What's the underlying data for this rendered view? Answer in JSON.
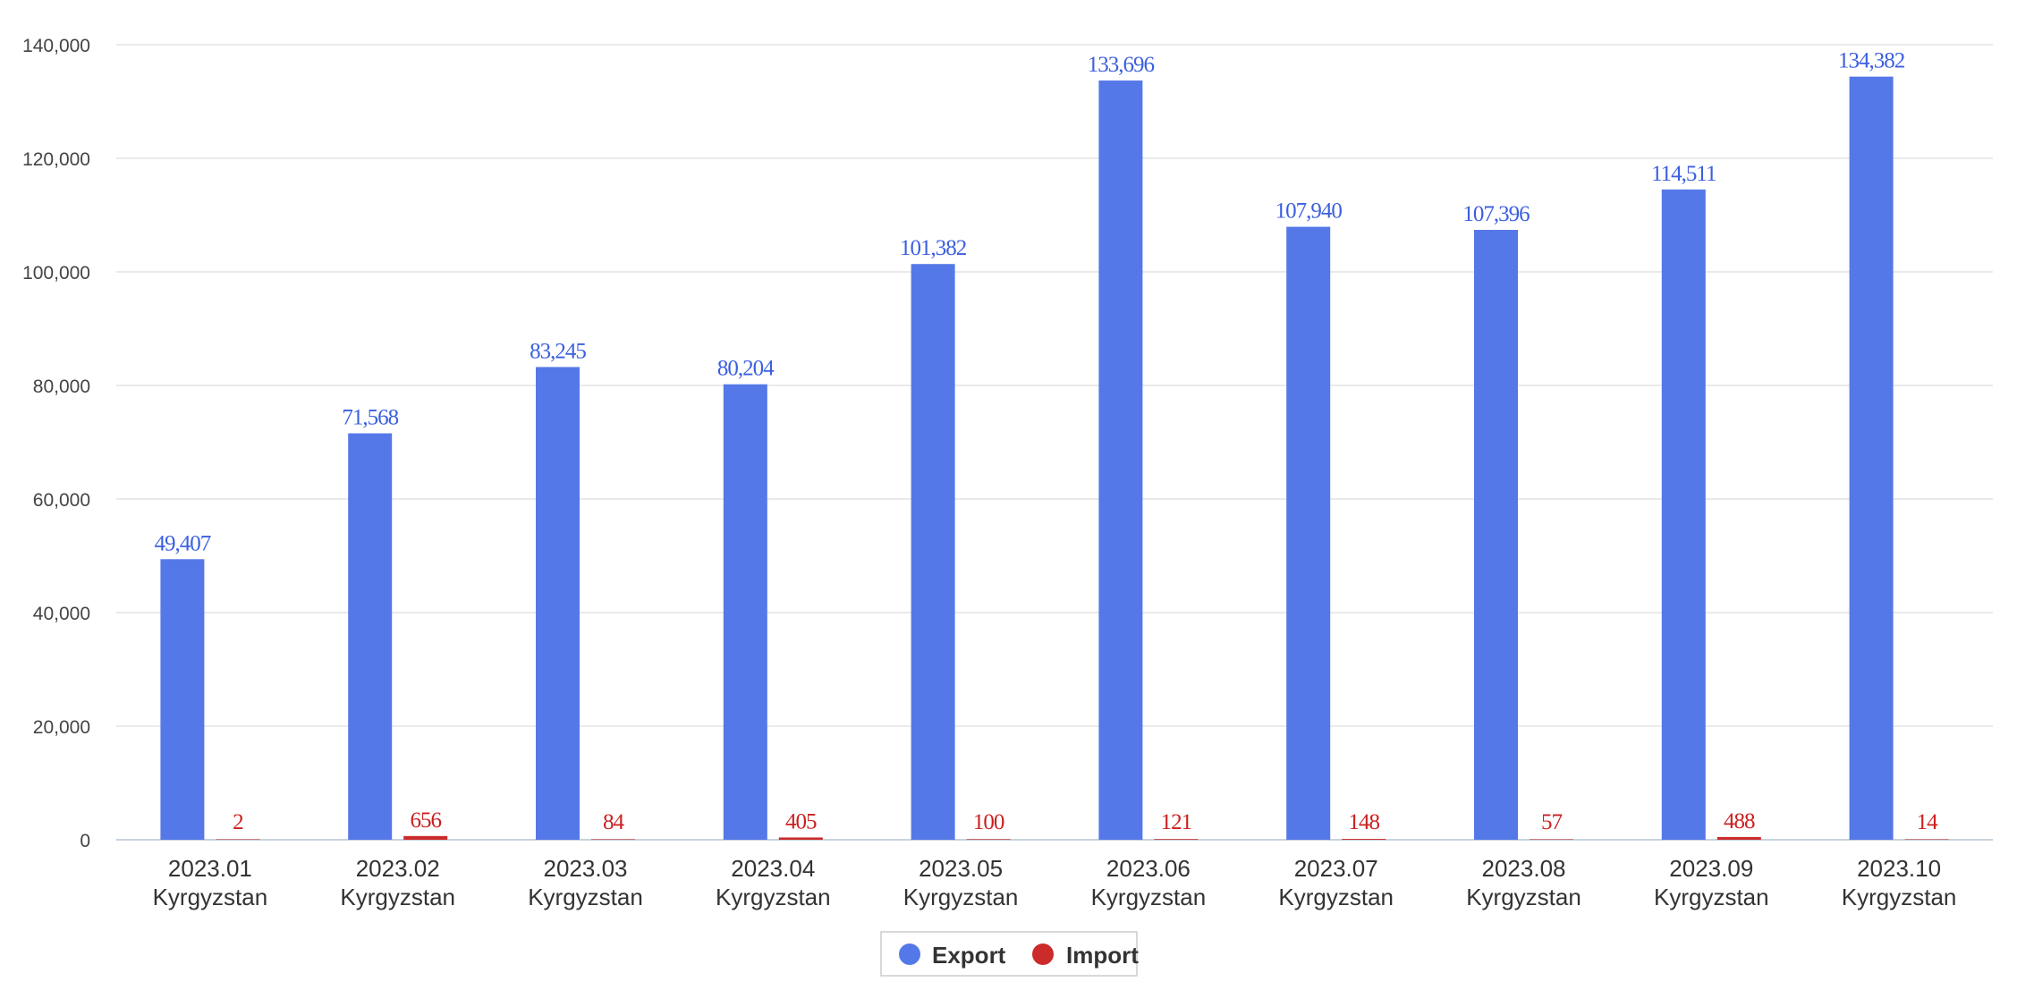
{
  "chart_data": {
    "type": "bar",
    "categories": [
      [
        "2023.01",
        "Kyrgyzstan"
      ],
      [
        "2023.02",
        "Kyrgyzstan"
      ],
      [
        "2023.03",
        "Kyrgyzstan"
      ],
      [
        "2023.04",
        "Kyrgyzstan"
      ],
      [
        "2023.05",
        "Kyrgyzstan"
      ],
      [
        "2023.06",
        "Kyrgyzstan"
      ],
      [
        "2023.07",
        "Kyrgyzstan"
      ],
      [
        "2023.08",
        "Kyrgyzstan"
      ],
      [
        "2023.09",
        "Kyrgyzstan"
      ],
      [
        "2023.10",
        "Kyrgyzstan"
      ]
    ],
    "series": [
      {
        "name": "Export",
        "color": "#5578e8",
        "label_color": "#3b5fe0",
        "values": [
          49407,
          71568,
          83245,
          80204,
          101382,
          133696,
          107940,
          107396,
          114511,
          134382
        ],
        "labels": [
          "49,407",
          "71,568",
          "83,245",
          "80,204",
          "101,382",
          "133,696",
          "107,940",
          "107,396",
          "114,511",
          "134,382"
        ]
      },
      {
        "name": "Import",
        "color": "#cc2b2b",
        "label_color": "#cc2020",
        "values": [
          2,
          656,
          84,
          405,
          100,
          121,
          148,
          57,
          488,
          14
        ],
        "labels": [
          "2",
          "656",
          "84",
          "405",
          "100",
          "121",
          "148",
          "57",
          "488",
          "14"
        ]
      }
    ],
    "ylim": [
      0,
      140000
    ],
    "yticks": [
      0,
      20000,
      40000,
      60000,
      80000,
      100000,
      120000,
      140000
    ],
    "ytick_labels": [
      "0",
      "20,000",
      "40,000",
      "60,000",
      "80,000",
      "100,000",
      "120,000",
      "140,000"
    ],
    "grid": true,
    "legend_position": "bottom-center",
    "title": "",
    "xlabel": "",
    "ylabel": ""
  }
}
